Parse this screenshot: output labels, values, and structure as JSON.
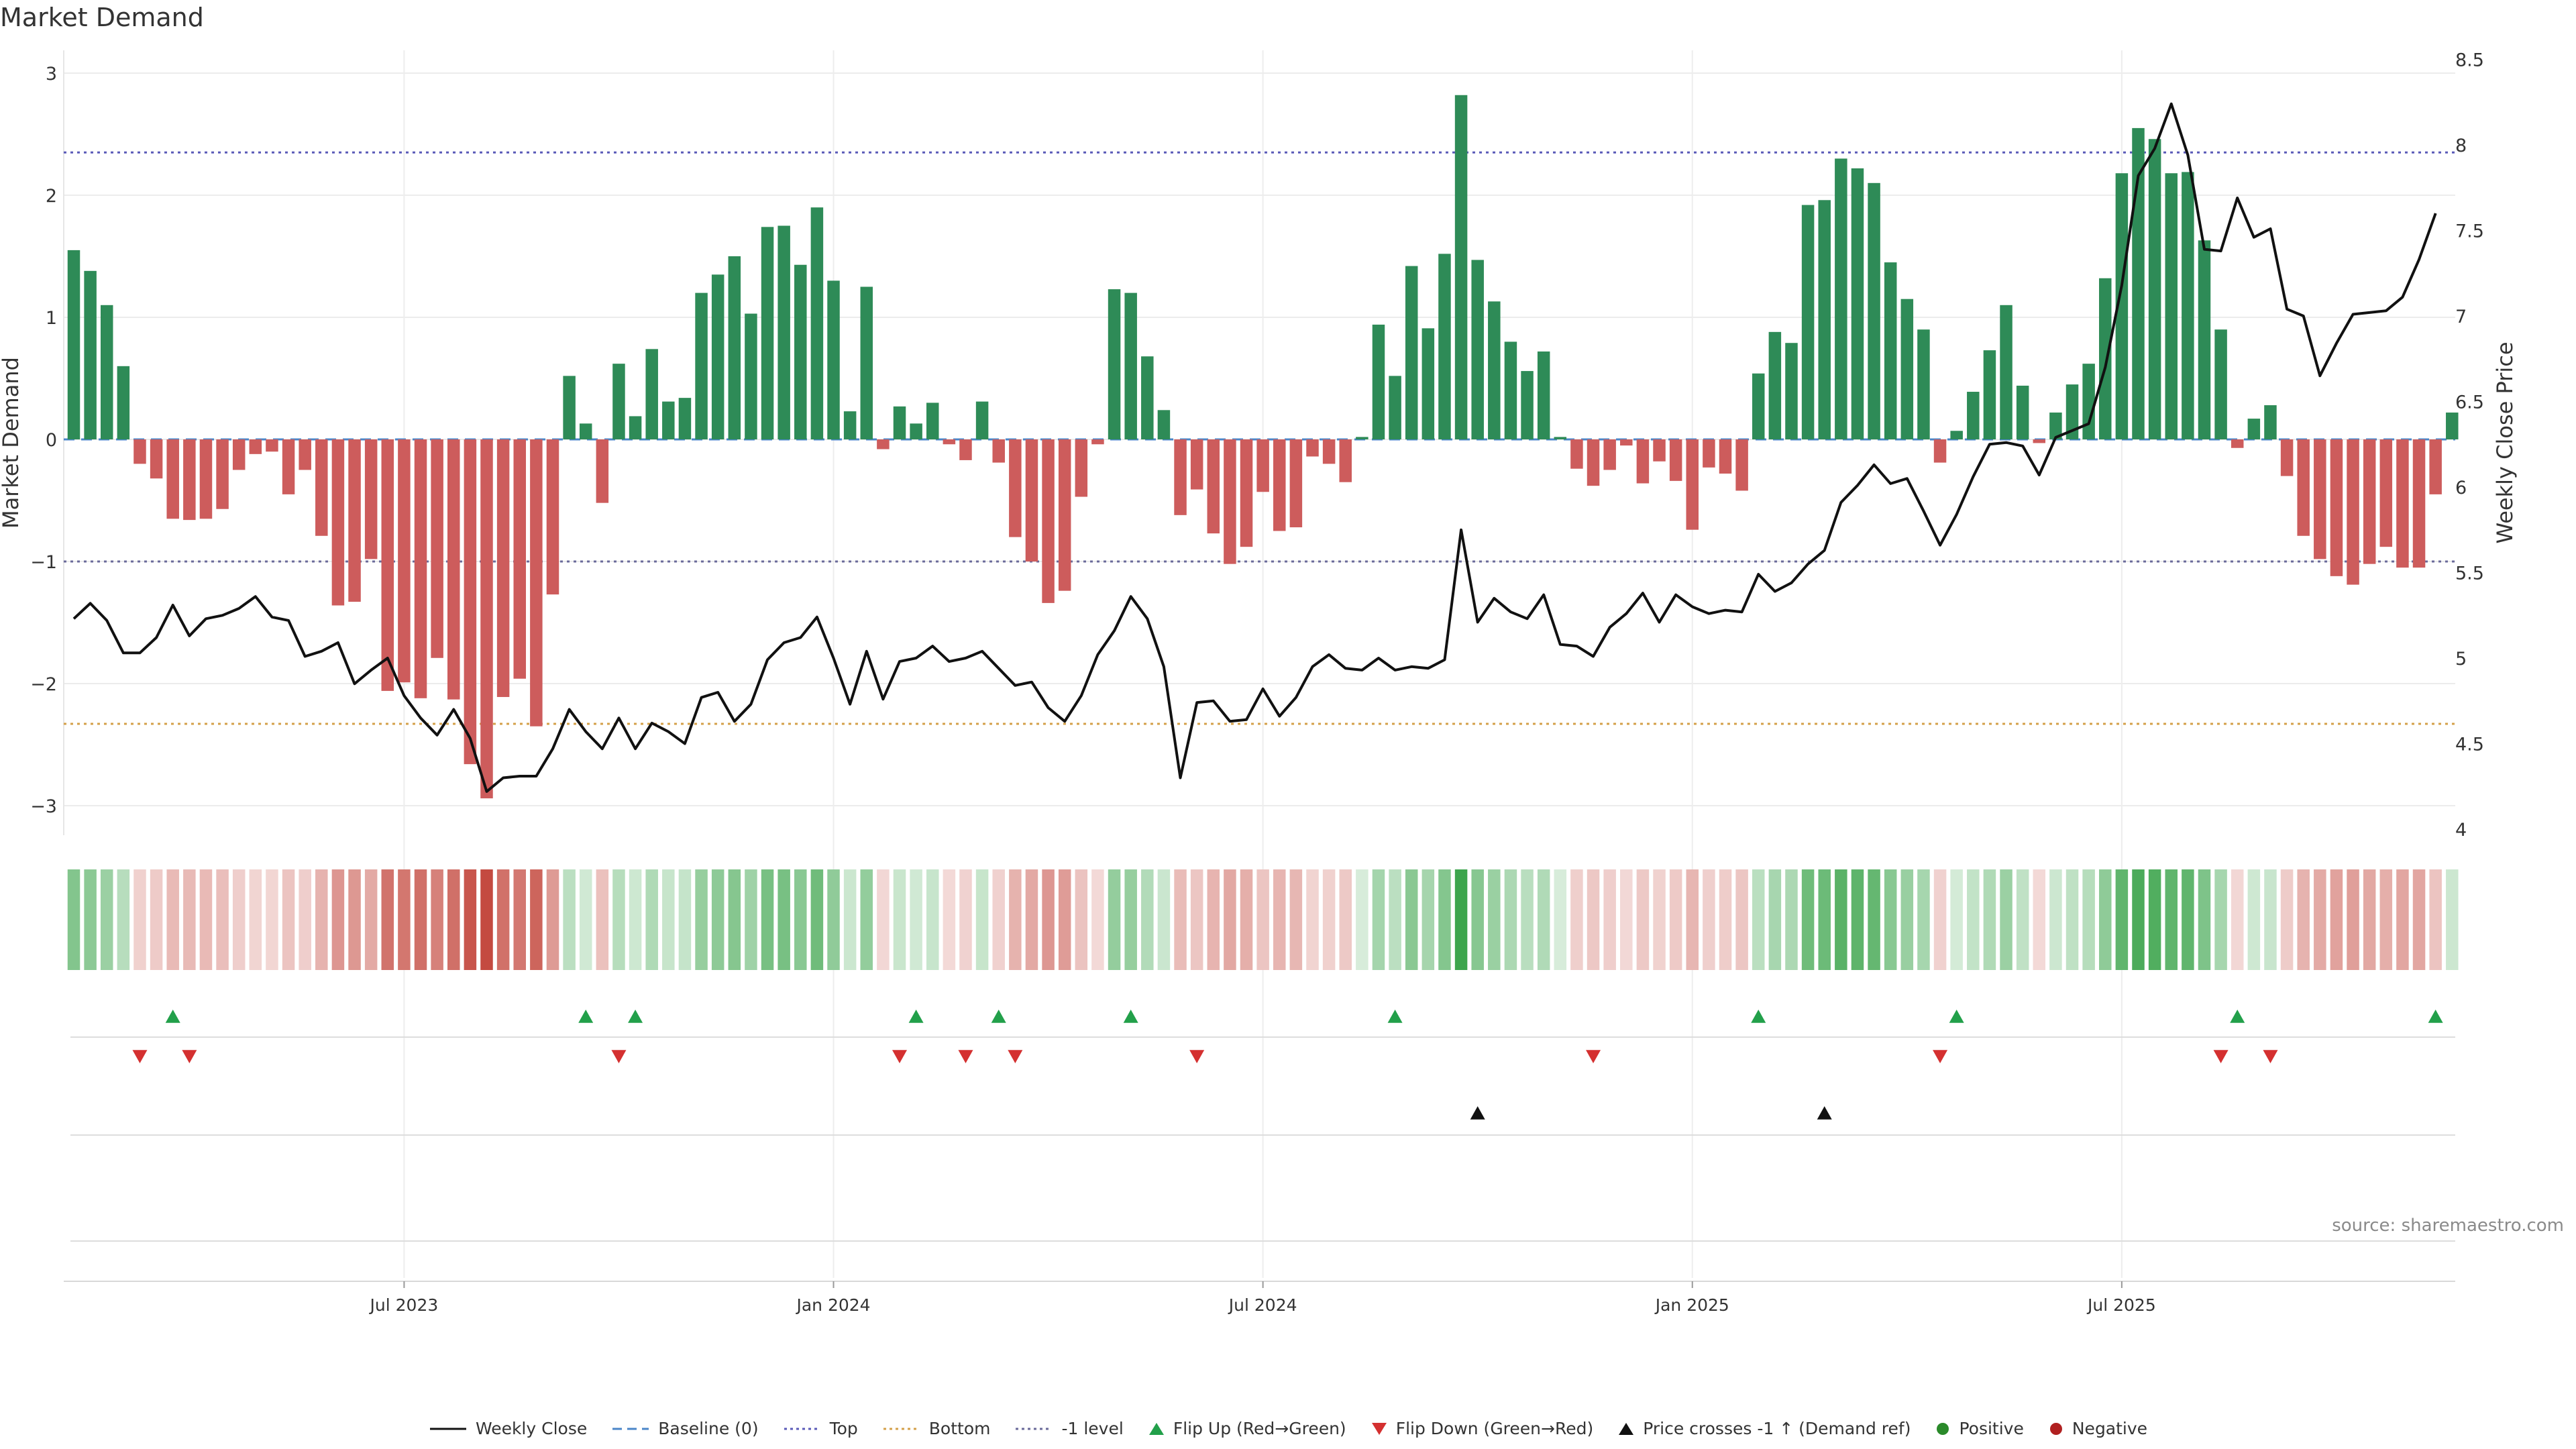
{
  "title": "Market Demand",
  "source": "source: sharemaestro.com",
  "colors": {
    "positive": "#2e8b57",
    "negative": "#cd5c5c",
    "price": "#111111",
    "top_line": "#5a5ab8",
    "bottom_line": "#d4a04a",
    "minus1_line": "#6a6a9a",
    "baseline": "#4a86c8",
    "flip_up": "#22a04a",
    "flip_down": "#d43030",
    "cross": "#111111",
    "positive_dot": "#2a8a2a",
    "negative_dot": "#b02020"
  },
  "legend": [
    {
      "label": "Weekly Close",
      "icon": "solid-line-icon",
      "color": "#111111"
    },
    {
      "label": "Baseline (0)",
      "icon": "dashed-line-icon",
      "color": "#4a86c8"
    },
    {
      "label": "Top",
      "icon": "dotted-line-icon",
      "color": "#5a5ab8"
    },
    {
      "label": "Bottom",
      "icon": "dotted-line-icon",
      "color": "#d4a04a"
    },
    {
      "label": "-1 level",
      "icon": "dotted-line-icon",
      "color": "#6a6a9a"
    },
    {
      "label": "Flip Up (Red→Green)",
      "icon": "triangle-up-icon",
      "color": "#22a04a"
    },
    {
      "label": "Flip Down (Green→Red)",
      "icon": "triangle-down-icon",
      "color": "#d43030"
    },
    {
      "label": "Price crosses -1 ↑ (Demand ref)",
      "icon": "triangle-up-icon",
      "color": "#111111"
    },
    {
      "label": "Positive",
      "icon": "circle-icon",
      "color": "#2a8a2a"
    },
    {
      "label": "Negative",
      "icon": "circle-icon",
      "color": "#b02020"
    }
  ],
  "chart_data": {
    "type": "bar",
    "title": "Market Demand",
    "ylabel": "Market Demand",
    "ylabel_right": "Weekly Close Price",
    "ylim": [
      -3.2,
      3.2
    ],
    "yticks": [
      -3,
      -2,
      -1,
      0,
      1,
      2,
      3
    ],
    "ytick_labels": [
      "−3",
      "−2",
      "−1",
      "0",
      "1",
      "2",
      "3"
    ],
    "ylim_right": [
      4.0,
      8.5
    ],
    "yticks_right": [
      4,
      4.5,
      5,
      5.5,
      6,
      6.5,
      7,
      7.5,
      8,
      8.5
    ],
    "ytick_labels_right": [
      "4",
      "4.5",
      "5",
      "5.5",
      "6",
      "6.5",
      "7",
      "7.5",
      "8",
      "8.5"
    ],
    "x_tick_labels": [
      {
        "index": 20,
        "label": "Jul 2023"
      },
      {
        "index": 46,
        "label": "Jan 2024"
      },
      {
        "index": 72,
        "label": "Jul 2024"
      },
      {
        "index": 98,
        "label": "Jan 2025"
      },
      {
        "index": 124,
        "label": "Jul 2025"
      }
    ],
    "reference_lines": {
      "top": 2.35,
      "bottom": -2.33,
      "minus_one": -1.0,
      "baseline": 0
    },
    "series": [
      {
        "name": "Market Demand",
        "type": "bar",
        "values": [
          1.55,
          1.38,
          1.1,
          0.6,
          -0.2,
          -0.32,
          -0.65,
          -0.66,
          -0.65,
          -0.57,
          -0.25,
          -0.12,
          -0.1,
          -0.45,
          -0.25,
          -0.79,
          -1.36,
          -1.33,
          -0.98,
          -2.06,
          -1.99,
          -2.12,
          -1.79,
          -2.13,
          -2.66,
          -2.94,
          -2.11,
          -1.96,
          -2.35,
          -1.27,
          0.52,
          0.13,
          -0.52,
          0.62,
          0.19,
          0.74,
          0.31,
          0.34,
          1.2,
          1.35,
          1.5,
          1.03,
          1.74,
          1.75,
          1.43,
          1.9,
          1.3,
          0.23,
          1.25,
          -0.08,
          0.27,
          0.13,
          0.3,
          -0.04,
          -0.17,
          0.31,
          -0.19,
          -0.8,
          -1.0,
          -1.34,
          -1.24,
          -0.47,
          -0.04,
          1.23,
          1.2,
          0.68,
          0.24,
          -0.62,
          -0.41,
          -0.77,
          -1.02,
          -0.88,
          -0.43,
          -0.75,
          -0.72,
          -0.14,
          -0.2,
          -0.35,
          0.02,
          0.94,
          0.52,
          1.42,
          0.91,
          1.52,
          2.82,
          1.47,
          1.13,
          0.8,
          0.56,
          0.72,
          0.02,
          -0.24,
          -0.38,
          -0.25,
          -0.05,
          -0.36,
          -0.18,
          -0.34,
          -0.74,
          -0.23,
          -0.28,
          -0.42,
          0.54,
          0.88,
          0.79,
          1.92,
          1.96,
          2.3,
          2.22,
          2.1,
          1.45,
          1.15,
          0.9,
          -0.19,
          0.07,
          0.39,
          0.73,
          1.1,
          0.44,
          -0.03,
          0.22,
          0.45,
          0.62,
          1.32,
          2.18,
          2.55,
          2.46,
          2.18,
          2.19,
          1.63,
          0.9,
          -0.07,
          0.17,
          0.28,
          -0.3,
          -0.79,
          -0.98,
          -1.12,
          -1.19,
          -1.02,
          -0.88,
          -1.05,
          -1.05,
          -0.45,
          0.22
        ]
      },
      {
        "name": "Weekly Close",
        "type": "line",
        "values": [
          5.23,
          5.32,
          5.22,
          5.03,
          5.03,
          5.12,
          5.31,
          5.13,
          5.23,
          5.25,
          5.29,
          5.36,
          5.24,
          5.22,
          5.01,
          5.04,
          5.09,
          4.85,
          4.93,
          5.0,
          4.78,
          4.65,
          4.55,
          4.7,
          4.53,
          4.22,
          4.3,
          4.31,
          4.31,
          4.47,
          4.7,
          4.57,
          4.47,
          4.65,
          4.47,
          4.62,
          4.57,
          4.5,
          4.77,
          4.8,
          4.63,
          4.73,
          4.99,
          5.09,
          5.12,
          5.24,
          5.0,
          4.73,
          5.04,
          4.76,
          4.98,
          5.0,
          5.07,
          4.98,
          5.0,
          5.04,
          4.94,
          4.84,
          4.86,
          4.71,
          4.63,
          4.78,
          5.02,
          5.16,
          5.36,
          5.23,
          4.95,
          4.3,
          4.74,
          4.75,
          4.63,
          4.64,
          4.82,
          4.66,
          4.77,
          4.95,
          5.02,
          4.94,
          4.93,
          5.0,
          4.93,
          4.95,
          4.94,
          4.99,
          5.75,
          5.21,
          5.35,
          5.27,
          5.23,
          5.37,
          5.08,
          5.07,
          5.01,
          5.18,
          5.26,
          5.38,
          5.21,
          5.37,
          5.3,
          5.26,
          5.28,
          5.27,
          5.49,
          5.39,
          5.44,
          5.55,
          5.63,
          5.91,
          6.01,
          6.13,
          6.02,
          6.05,
          5.86,
          5.66,
          5.84,
          6.06,
          6.25,
          6.26,
          6.24,
          6.07,
          6.29,
          6.33,
          6.37,
          6.7,
          7.18,
          7.82,
          7.98,
          8.24,
          7.94,
          7.39,
          7.38,
          7.69,
          7.46,
          7.51,
          7.04,
          7.0,
          6.65,
          6.84,
          7.01,
          7.02,
          7.03,
          7.11,
          7.33,
          7.6
        ]
      }
    ],
    "flip_up_indices": [
      6,
      31,
      34,
      51,
      56,
      64,
      80,
      102,
      114,
      131,
      143
    ],
    "flip_down_indices": [
      4,
      7,
      33,
      50,
      54,
      57,
      68,
      92,
      113,
      130,
      133
    ],
    "price_cross_indices": [
      85,
      106
    ]
  }
}
